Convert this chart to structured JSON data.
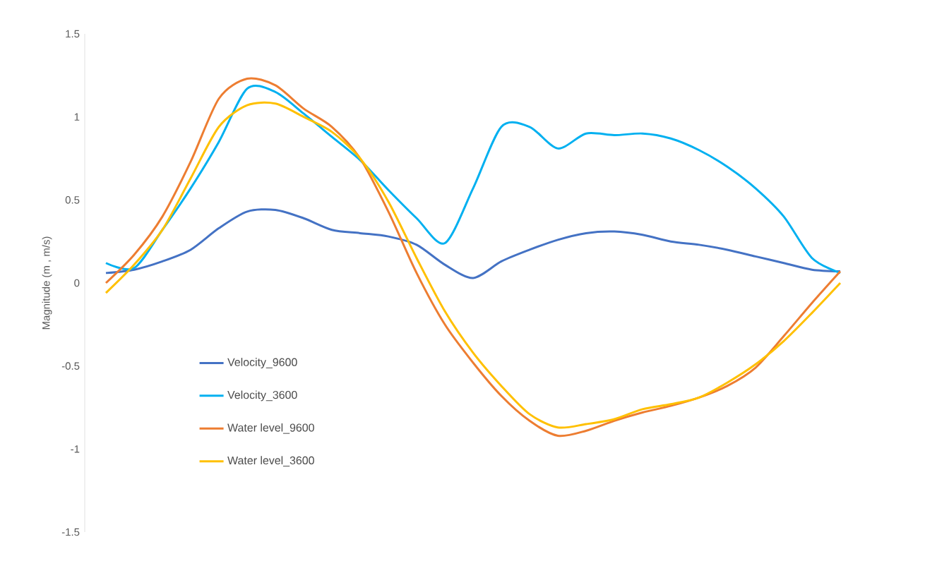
{
  "chart_data": {
    "type": "line",
    "ylabel": "Magnitude (m , m/s)",
    "categories": [
      null,
      null,
      null,
      null,
      null,
      null,
      null,
      null,
      null,
      null,
      null,
      null,
      null,
      null,
      null,
      null,
      null,
      null,
      null,
      null,
      null,
      null,
      null,
      null,
      null,
      null,
      null
    ],
    "series": [
      {
        "name": "Velocity_9600",
        "color": "#4472c4",
        "values": [
          0.06,
          0.08,
          0.13,
          0.2,
          0.33,
          0.43,
          0.44,
          0.39,
          0.32,
          0.3,
          0.28,
          0.23,
          0.11,
          0.03,
          0.13,
          0.2,
          0.26,
          0.3,
          0.31,
          0.29,
          0.25,
          0.23,
          0.2,
          0.16,
          0.12,
          0.08,
          0.07
        ]
      },
      {
        "name": "Velocity_3600",
        "color": "#00b0f0",
        "values": [
          0.12,
          0.09,
          0.32,
          0.57,
          0.85,
          1.17,
          1.15,
          1.02,
          0.88,
          0.74,
          0.56,
          0.39,
          0.24,
          0.57,
          0.94,
          0.94,
          0.81,
          0.9,
          0.89,
          0.9,
          0.87,
          0.8,
          0.7,
          0.57,
          0.4,
          0.15,
          0.06
        ]
      },
      {
        "name": "Water level_9600",
        "color": "#ed7d31",
        "values": [
          0.0,
          0.17,
          0.4,
          0.73,
          1.11,
          1.23,
          1.19,
          1.05,
          0.94,
          0.75,
          0.43,
          0.06,
          -0.25,
          -0.48,
          -0.68,
          -0.83,
          -0.92,
          -0.89,
          -0.83,
          -0.78,
          -0.74,
          -0.69,
          -0.62,
          -0.51,
          -0.32,
          -0.12,
          0.07
        ]
      },
      {
        "name": "Water level_3600",
        "color": "#ffc000",
        "values": [
          -0.06,
          0.11,
          0.32,
          0.63,
          0.94,
          1.07,
          1.08,
          1.0,
          0.91,
          0.75,
          0.49,
          0.15,
          -0.17,
          -0.42,
          -0.62,
          -0.79,
          -0.87,
          -0.85,
          -0.82,
          -0.76,
          -0.73,
          -0.69,
          -0.6,
          -0.49,
          -0.35,
          -0.18,
          0.0
        ]
      }
    ],
    "ylim": [
      -1.5,
      1.5
    ],
    "yticks": [
      -1.5,
      -1,
      -0.5,
      0,
      0.5,
      1,
      1.5
    ],
    "grid": false,
    "legend": "bottom left",
    "line_style": "solid",
    "marker": "none",
    "tick_labels": "y"
  }
}
